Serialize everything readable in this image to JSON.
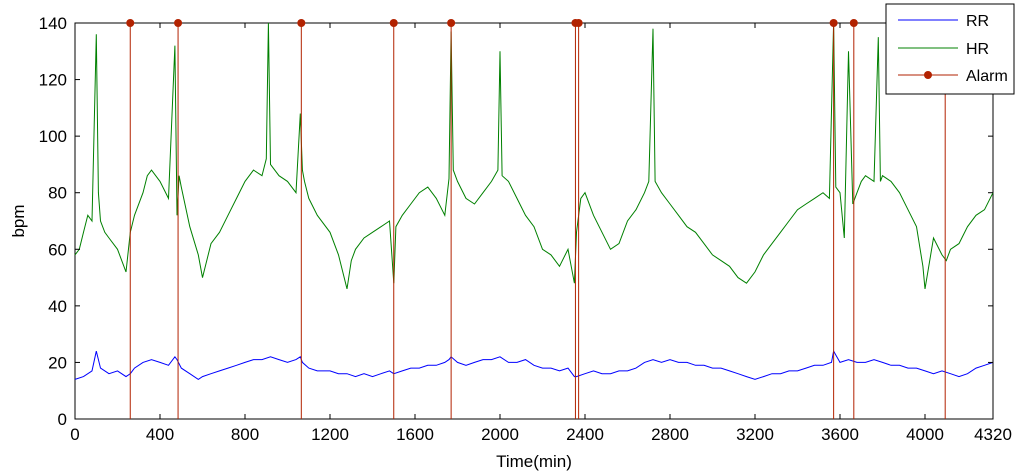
{
  "chart_data": {
    "type": "line",
    "xlabel": "Time(min)",
    "ylabel": "bpm",
    "xlim": [
      0,
      4320
    ],
    "ylim": [
      0,
      140
    ],
    "x_ticks": [
      0,
      400,
      800,
      1200,
      1600,
      2000,
      2400,
      2800,
      3200,
      3600,
      4000,
      4320
    ],
    "y_ticks": [
      0,
      20,
      40,
      60,
      80,
      100,
      120,
      140
    ],
    "legend_position": "top-right",
    "grid": false,
    "series": [
      {
        "name": "RR",
        "color": "#0000ff",
        "x": [
          0,
          40,
          80,
          100,
          120,
          160,
          200,
          240,
          260,
          280,
          320,
          360,
          400,
          440,
          470,
          480,
          500,
          540,
          580,
          600,
          640,
          680,
          720,
          760,
          800,
          840,
          880,
          920,
          960,
          1000,
          1040,
          1060,
          1070,
          1100,
          1140,
          1200,
          1240,
          1280,
          1320,
          1360,
          1400,
          1440,
          1480,
          1500,
          1540,
          1580,
          1620,
          1660,
          1700,
          1740,
          1760,
          1770,
          1800,
          1840,
          1880,
          1920,
          1960,
          2000,
          2040,
          2080,
          2120,
          2160,
          2200,
          2240,
          2280,
          2320,
          2350,
          2360,
          2400,
          2440,
          2480,
          2520,
          2560,
          2600,
          2640,
          2680,
          2720,
          2760,
          2800,
          2840,
          2880,
          2920,
          2960,
          3000,
          3040,
          3080,
          3120,
          3160,
          3200,
          3240,
          3280,
          3320,
          3360,
          3400,
          3440,
          3480,
          3520,
          3560,
          3570,
          3600,
          3640,
          3680,
          3720,
          3760,
          3800,
          3840,
          3880,
          3920,
          3960,
          4000,
          4040,
          4080,
          4120,
          4160,
          4200,
          4240,
          4280,
          4320
        ],
        "y": [
          14,
          15,
          17,
          24,
          18,
          16,
          17,
          15,
          16,
          18,
          20,
          21,
          20,
          19,
          22,
          21,
          18,
          16,
          14,
          15,
          16,
          17,
          18,
          19,
          20,
          21,
          21,
          22,
          21,
          20,
          21,
          22,
          20,
          18,
          17,
          17,
          16,
          16,
          15,
          16,
          15,
          16,
          17,
          16,
          17,
          18,
          18,
          19,
          19,
          20,
          21,
          22,
          20,
          19,
          20,
          21,
          21,
          22,
          20,
          20,
          21,
          19,
          18,
          18,
          17,
          18,
          15,
          15,
          16,
          17,
          16,
          16,
          17,
          17,
          18,
          20,
          21,
          20,
          21,
          20,
          20,
          19,
          19,
          18,
          18,
          17,
          16,
          15,
          14,
          15,
          16,
          16,
          17,
          17,
          18,
          19,
          19,
          20,
          24,
          20,
          21,
          20,
          20,
          21,
          20,
          19,
          19,
          18,
          18,
          17,
          16,
          17,
          16,
          15,
          16,
          18,
          19,
          20
        ]
      },
      {
        "name": "HR",
        "color": "#008000",
        "x": [
          0,
          20,
          40,
          60,
          80,
          100,
          110,
          120,
          140,
          160,
          200,
          240,
          260,
          280,
          320,
          340,
          360,
          400,
          440,
          470,
          480,
          490,
          500,
          540,
          580,
          600,
          640,
          680,
          720,
          760,
          800,
          840,
          880,
          900,
          910,
          920,
          960,
          1000,
          1040,
          1060,
          1070,
          1080,
          1100,
          1140,
          1200,
          1240,
          1280,
          1300,
          1320,
          1360,
          1400,
          1440,
          1480,
          1500,
          1510,
          1540,
          1580,
          1620,
          1660,
          1700,
          1740,
          1760,
          1770,
          1780,
          1800,
          1840,
          1880,
          1920,
          1960,
          1990,
          2000,
          2010,
          2040,
          2080,
          2120,
          2160,
          2200,
          2240,
          2280,
          2320,
          2350,
          2360,
          2380,
          2400,
          2440,
          2480,
          2520,
          2560,
          2600,
          2640,
          2680,
          2700,
          2720,
          2730,
          2760,
          2800,
          2840,
          2880,
          2920,
          2960,
          3000,
          3040,
          3080,
          3120,
          3160,
          3200,
          3240,
          3280,
          3320,
          3360,
          3400,
          3440,
          3480,
          3520,
          3550,
          3570,
          3580,
          3600,
          3620,
          3640,
          3660,
          3680,
          3700,
          3720,
          3760,
          3780,
          3790,
          3800,
          3840,
          3880,
          3920,
          3960,
          3990,
          4000,
          4040,
          4080,
          4100,
          4120,
          4160,
          4200,
          4240,
          4280,
          4320
        ],
        "y": [
          58,
          60,
          66,
          72,
          70,
          136,
          80,
          70,
          66,
          64,
          60,
          52,
          66,
          72,
          80,
          86,
          88,
          84,
          78,
          132,
          72,
          86,
          82,
          68,
          58,
          50,
          62,
          66,
          72,
          78,
          84,
          88,
          86,
          92,
          140,
          90,
          86,
          84,
          80,
          108,
          88,
          84,
          78,
          72,
          66,
          58,
          46,
          56,
          60,
          64,
          66,
          68,
          70,
          48,
          68,
          72,
          76,
          80,
          82,
          78,
          72,
          85,
          137,
          88,
          84,
          78,
          76,
          80,
          84,
          88,
          130,
          86,
          84,
          78,
          72,
          68,
          60,
          58,
          54,
          60,
          48,
          66,
          78,
          80,
          72,
          66,
          60,
          62,
          70,
          74,
          80,
          84,
          138,
          84,
          80,
          76,
          72,
          68,
          66,
          62,
          58,
          56,
          54,
          50,
          48,
          52,
          58,
          62,
          66,
          70,
          74,
          76,
          78,
          80,
          78,
          140,
          82,
          80,
          64,
          130,
          76,
          80,
          84,
          86,
          84,
          135,
          84,
          86,
          84,
          80,
          74,
          68,
          54,
          46,
          64,
          58,
          56,
          60,
          62,
          68,
          72,
          74,
          80
        ]
      }
    ],
    "alarms": {
      "name": "Alarm",
      "color": "#b22200",
      "x": [
        260,
        485,
        1065,
        1500,
        1770,
        2355,
        2370,
        3570,
        3665,
        4095
      ],
      "marker_x": [
        260,
        485,
        1065,
        1500,
        1770,
        2355,
        2370,
        3570,
        3665
      ]
    }
  }
}
